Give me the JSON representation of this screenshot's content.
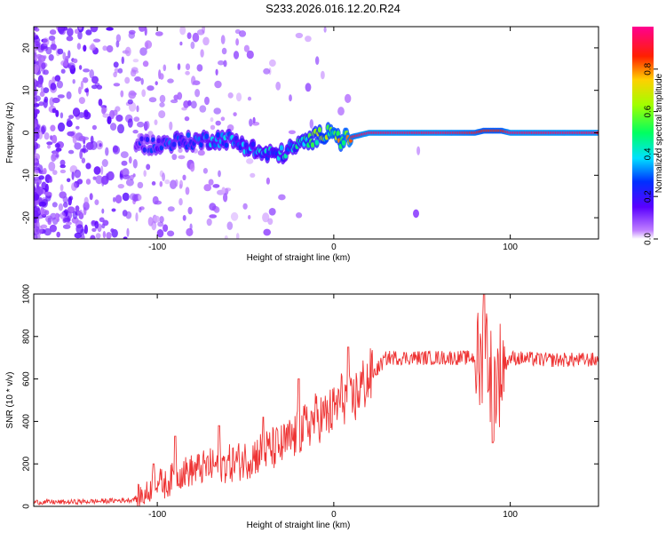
{
  "title": "S233.2026.016.12.20.R24",
  "chart_data": [
    {
      "type": "heatmap",
      "xlabel": "Height of straight line (km)",
      "ylabel": "Frequency (Hz)",
      "xlim": [
        -170,
        150
      ],
      "ylim": [
        -25,
        25
      ],
      "xticks": [
        -100,
        0,
        100
      ],
      "yticks": [
        -20,
        -10,
        0,
        10,
        20
      ],
      "colorbar": {
        "label": "Normalized spectral amplitude",
        "range": [
          0,
          1
        ],
        "ticks": [
          0.0,
          0.2,
          0.4,
          0.6,
          0.8
        ],
        "tick_labels": [
          "0.0",
          "0.2",
          "0.4",
          "0.6",
          "0.8"
        ]
      },
      "ridge": {
        "x": [
          -110,
          -100,
          -90,
          -80,
          -70,
          -60,
          -50,
          -40,
          -30,
          -20,
          -10,
          0,
          3,
          10,
          20,
          40,
          60,
          80,
          85,
          95,
          100,
          120,
          150
        ],
        "frequency": [
          -2.5,
          -3,
          -2,
          -2,
          -1.5,
          -1.5,
          -3,
          -5,
          -5,
          -3,
          -1,
          1,
          -2,
          -1,
          0,
          0,
          0,
          0,
          0.5,
          0.5,
          0,
          0,
          0
        ],
        "amplitude": [
          0.25,
          0.3,
          0.35,
          0.35,
          0.4,
          0.4,
          0.4,
          0.45,
          0.45,
          0.5,
          0.7,
          0.85,
          0.8,
          0.9,
          0.95,
          0.95,
          0.95,
          0.9,
          0.85,
          0.85,
          0.95,
          0.95,
          0.95
        ]
      }
    },
    {
      "type": "line",
      "xlabel": "Height of straight line (km)",
      "ylabel": "SNR (10 * v/v)",
      "xlim": [
        -170,
        150
      ],
      "ylim": [
        0,
        1000
      ],
      "xticks": [
        -100,
        0,
        100
      ],
      "yticks": [
        0,
        200,
        400,
        600,
        800,
        1000
      ],
      "color": "#ee3333",
      "series": [
        {
          "name": "SNR",
          "x": [
            -170,
            -150,
            -130,
            -115,
            -112,
            -105,
            -102,
            -95,
            -90,
            -80,
            -70,
            -60,
            -50,
            -40,
            -30,
            -20,
            -15,
            -10,
            -5,
            0,
            5,
            10,
            15,
            20,
            25,
            30,
            40,
            60,
            80,
            83,
            86,
            90,
            95,
            100,
            120,
            150
          ],
          "values": [
            20,
            20,
            25,
            30,
            40,
            60,
            130,
            100,
            150,
            170,
            190,
            200,
            220,
            260,
            280,
            340,
            380,
            420,
            420,
            450,
            520,
            480,
            560,
            600,
            650,
            700,
            700,
            700,
            700,
            650,
            800,
            550,
            650,
            700,
            690,
            690
          ],
          "annotations": {
            "spikes": [
              {
                "x": -102,
                "value": 200
              },
              {
                "x": -90,
                "value": 330
              },
              {
                "x": -65,
                "value": 380
              },
              {
                "x": -40,
                "value": 420
              },
              {
                "x": -20,
                "value": 600
              },
              {
                "x": 8,
                "value": 750
              },
              {
                "x": 85,
                "value": 1000
              },
              {
                "x": 90,
                "value": 300
              }
            ]
          }
        }
      ]
    }
  ]
}
